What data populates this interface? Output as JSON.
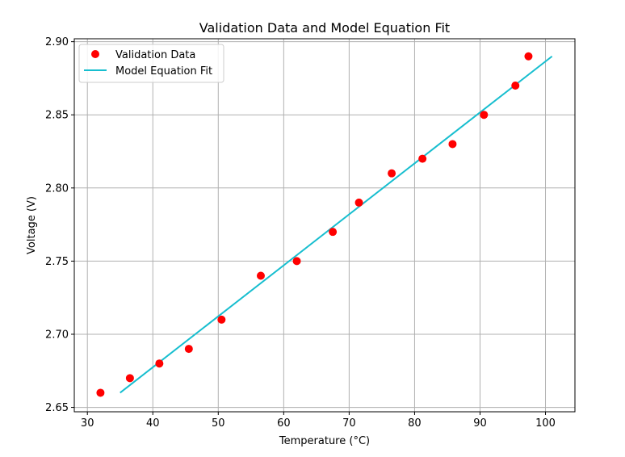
{
  "chart_data": {
    "type": "scatter",
    "title": "Validation Data and Model Equation Fit",
    "xlabel": "Temperature (°C)",
    "ylabel": "Voltage (V)",
    "xlim": [
      28.0,
      104.5
    ],
    "ylim": [
      2.647,
      2.902
    ],
    "xticks": [
      30,
      40,
      50,
      60,
      70,
      80,
      90,
      100
    ],
    "yticks": [
      2.65,
      2.7,
      2.75,
      2.8,
      2.85,
      2.9
    ],
    "xtick_labels": [
      "30",
      "40",
      "50",
      "60",
      "70",
      "80",
      "90",
      "100"
    ],
    "ytick_labels": [
      "2.65",
      "2.70",
      "2.75",
      "2.80",
      "2.85",
      "2.90"
    ],
    "grid": true,
    "legend_position": "top-left",
    "series": [
      {
        "name": "Validation Data",
        "kind": "scatter",
        "color": "#ff0000",
        "x": [
          32.0,
          36.5,
          41.0,
          45.5,
          50.5,
          56.5,
          62.0,
          67.5,
          71.5,
          76.5,
          81.2,
          85.8,
          90.6,
          95.4,
          97.4
        ],
        "y": [
          2.66,
          2.67,
          2.68,
          2.69,
          2.71,
          2.74,
          2.75,
          2.77,
          2.79,
          2.81,
          2.82,
          2.83,
          2.85,
          2.87,
          2.89
        ]
      },
      {
        "name": "Model Equation Fit",
        "kind": "line",
        "color": "#17becf",
        "x": [
          35,
          101
        ],
        "y": [
          2.66,
          2.89
        ]
      }
    ]
  }
}
